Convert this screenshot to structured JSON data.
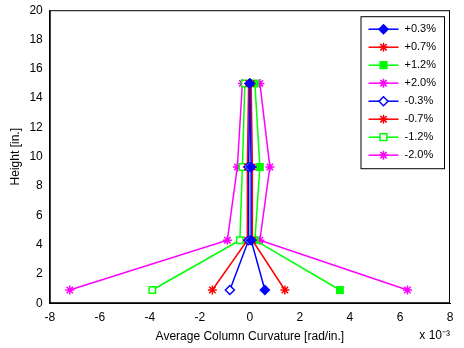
{
  "chart_data": {
    "type": "line",
    "x_label": "Average Column Curvature [rad/in.]",
    "y_label": "Height [in.]",
    "annotation": "x 10⁻³",
    "xlim": [
      -8,
      8
    ],
    "xticks": [
      -8,
      -6,
      -4,
      -2,
      0,
      2,
      4,
      6,
      8
    ],
    "ylim": [
      0,
      20
    ],
    "yticks": [
      0,
      2,
      4,
      6,
      8,
      10,
      12,
      14,
      16,
      18,
      20
    ],
    "grid": false,
    "legend": "upper right",
    "series": [
      {
        "name": "+0.3%",
        "color": "#0000ff",
        "marker": "diamond",
        "x": [
          0.6,
          0.05,
          0.05,
          0.0
        ],
        "values": [
          0.9,
          4.3,
          9.3,
          15.0
        ]
      },
      {
        "name": "+0.7%",
        "color": "#ff0000",
        "marker": "star",
        "x": [
          1.4,
          0.1,
          0.1,
          0.05
        ],
        "values": [
          0.9,
          4.3,
          9.3,
          15.0
        ]
      },
      {
        "name": "+1.2%",
        "color": "#00ff00",
        "marker": "square",
        "x": [
          3.6,
          0.2,
          0.4,
          0.2
        ],
        "values": [
          0.9,
          4.3,
          9.3,
          15.0
        ]
      },
      {
        "name": "+2.0%",
        "color": "#ff00ff",
        "marker": "star",
        "x": [
          6.3,
          0.4,
          0.8,
          0.4
        ],
        "values": [
          0.9,
          4.3,
          9.3,
          15.0
        ]
      },
      {
        "name": "-0.3%",
        "color": "#0000ff",
        "marker": "open-diamond",
        "x": [
          -0.8,
          -0.05,
          -0.05,
          0.0
        ],
        "values": [
          0.9,
          4.3,
          9.3,
          15.0
        ]
      },
      {
        "name": "-0.7%",
        "color": "#ff0000",
        "marker": "open-star",
        "x": [
          -1.5,
          -0.1,
          -0.1,
          -0.05
        ],
        "values": [
          0.9,
          4.3,
          9.3,
          15.0
        ]
      },
      {
        "name": "-1.2%",
        "color": "#00ff00",
        "marker": "open-square",
        "x": [
          -3.9,
          -0.4,
          -0.3,
          -0.2
        ],
        "values": [
          0.9,
          4.3,
          9.3,
          15.0
        ]
      },
      {
        "name": "-2.0%",
        "color": "#ff00ff",
        "marker": "open-star",
        "x": [
          -7.2,
          -0.9,
          -0.5,
          -0.3
        ],
        "values": [
          0.9,
          4.3,
          9.3,
          15.0
        ]
      }
    ]
  }
}
